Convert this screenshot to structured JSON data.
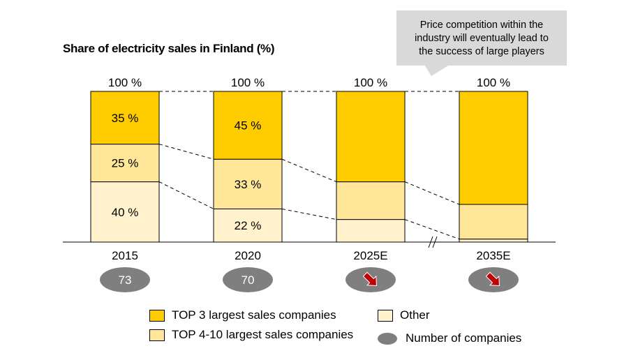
{
  "chart_data": {
    "type": "bar",
    "stacked": true,
    "title": "Share of electricity sales in Finland (%)",
    "categories": [
      "2015",
      "2020",
      "2025E",
      "2035E"
    ],
    "totals": [
      "100 %",
      "100 %",
      "100 %",
      "100 %"
    ],
    "series": [
      {
        "name": "Other",
        "color": "#fff2cc",
        "values": [
          40,
          22,
          15,
          2
        ],
        "labels": [
          "40 %",
          "22 %",
          "",
          ""
        ]
      },
      {
        "name": "TOP 4-10 largest sales companies",
        "color": "#ffe699",
        "values": [
          25,
          33,
          25,
          23
        ],
        "labels": [
          "25 %",
          "33 %",
          "",
          ""
        ]
      },
      {
        "name": "TOP 3 largest sales companies",
        "color": "#ffcc00",
        "values": [
          35,
          45,
          60,
          75
        ],
        "labels": [
          "35 %",
          "45 %",
          "",
          ""
        ]
      }
    ],
    "number_of_companies": [
      "73",
      "70",
      "decreasing",
      "decreasing"
    ],
    "ylim": [
      0,
      100
    ],
    "axis_break_between": [
      "2025E",
      "2035E"
    ],
    "legend_position": "bottom",
    "colors": {
      "bubble": "#7f7f7f",
      "arrow": "#c00000",
      "callout_bg": "#d9d9d9"
    }
  },
  "callout": {
    "lines": [
      "Price competition within the",
      "industry will eventually  lead to",
      "the success of large players"
    ]
  },
  "legend": {
    "top3": "TOP 3 largest sales companies",
    "other": "Other",
    "top4_10": "TOP 4-10 largest sales companies",
    "companies": "Number of companies"
  }
}
